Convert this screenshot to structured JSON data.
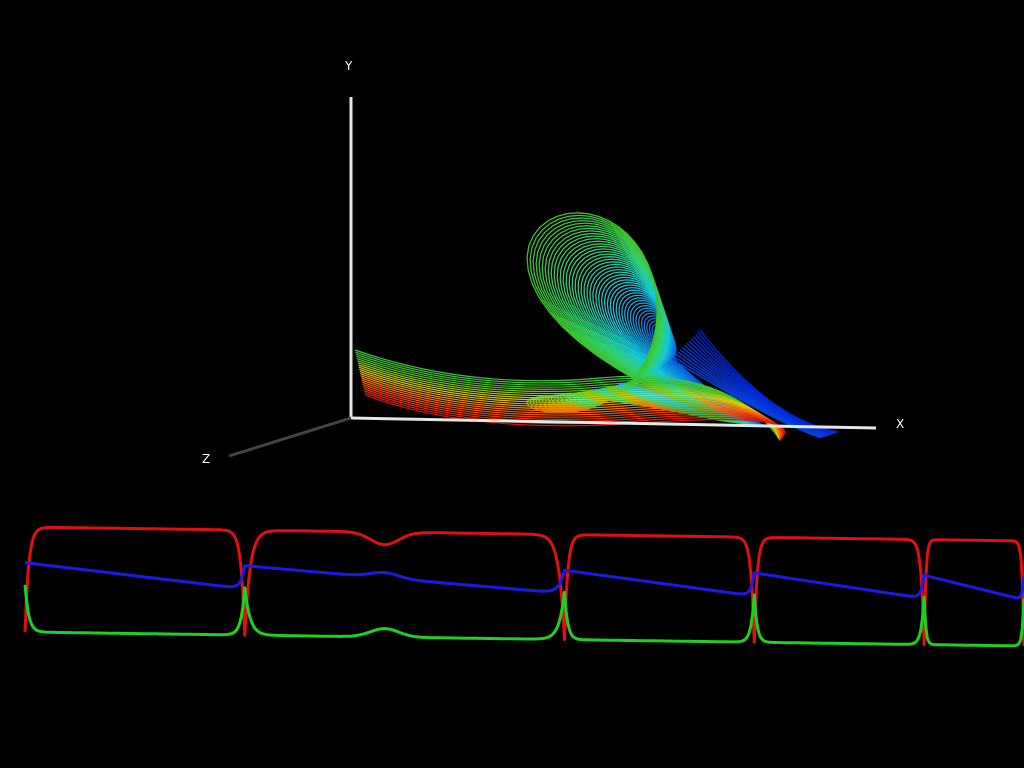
{
  "chart_data": [
    {
      "type": "line",
      "view": "3d-phase-portrait",
      "axes": [
        {
          "name": "X",
          "label": "X"
        },
        {
          "name": "Y",
          "label": "Y"
        },
        {
          "name": "Z",
          "label": "Z"
        }
      ],
      "grid": false,
      "legend": "none",
      "colormap": [
        "#0018d8",
        "#0a6ee0",
        "#14c8dc",
        "#30d070",
        "#40c020",
        "#e0d000",
        "#ff6000",
        "#d81010"
      ],
      "axis_colors": {
        "x": "#e0e0e0",
        "y": "#e0e0e0",
        "z": "#444444"
      },
      "background": "#000000"
    },
    {
      "type": "line",
      "view": "time-series",
      "grid": false,
      "legend": "none",
      "series": [
        {
          "color": "#e01010",
          "level_high": 1.0,
          "level_low": 0.0
        },
        {
          "color": "#1a1ae6",
          "level_high": 0.66,
          "level_low": 0.44
        },
        {
          "color": "#20d020",
          "level_high": 0.45,
          "level_low": 0.0
        }
      ],
      "cycles": [
        {
          "t_start": 0.0,
          "t_end": 0.22,
          "dip_at": null
        },
        {
          "t_start": 0.22,
          "t_end": 0.54,
          "dip_at": 0.36
        },
        {
          "t_start": 0.54,
          "t_end": 0.73,
          "dip_at": null
        },
        {
          "t_start": 0.73,
          "t_end": 0.9,
          "dip_at": null
        },
        {
          "t_start": 0.9,
          "t_end": 1.0,
          "dip_at": null
        }
      ]
    }
  ]
}
